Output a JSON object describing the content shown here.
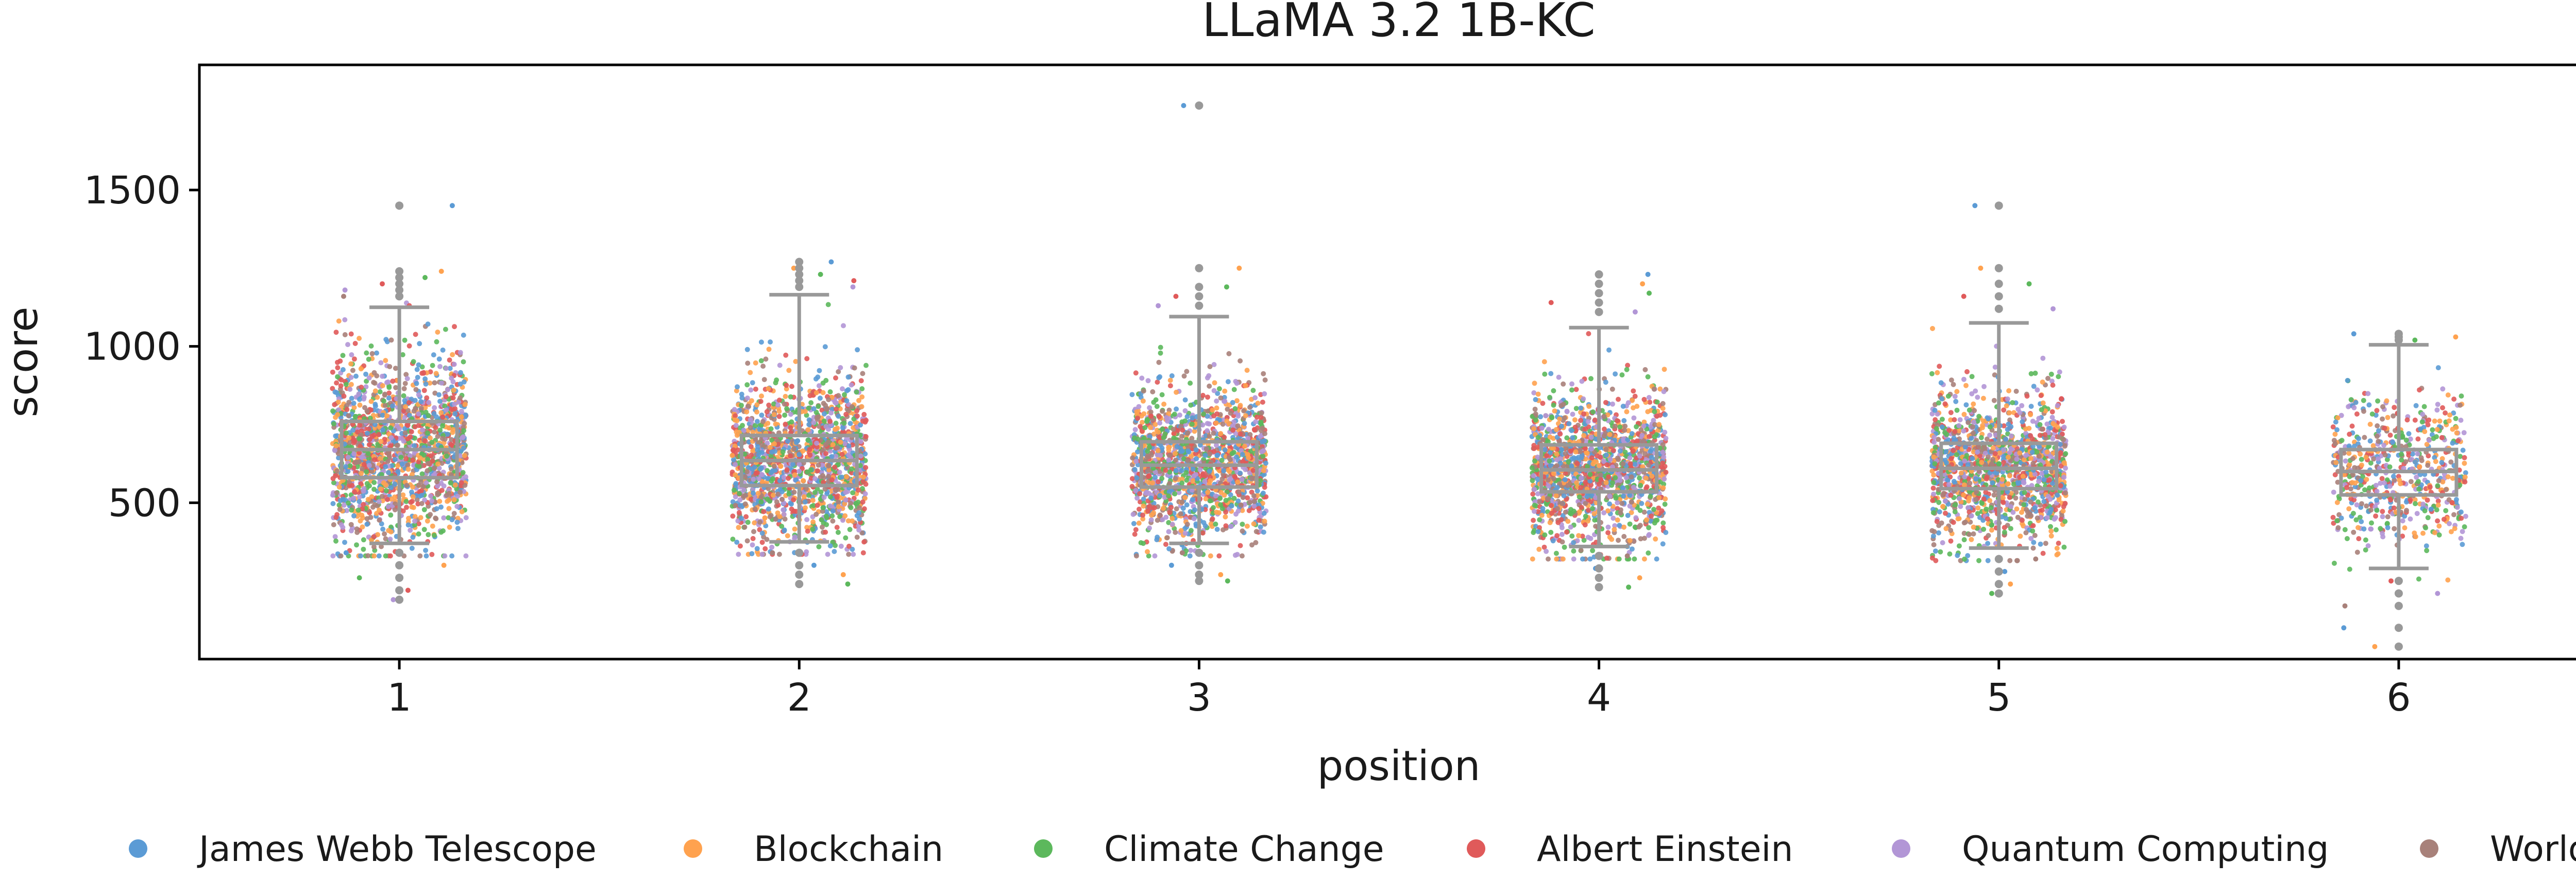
{
  "chart_data": {
    "type": "box_strip",
    "title": "LLaMA 3.2 1B-KC",
    "xlabel": "position",
    "ylabel": "score",
    "categories": [
      "1",
      "2",
      "3",
      "4",
      "5",
      "6"
    ],
    "ylim": [
      0,
      1900
    ],
    "yticks": [
      500,
      1000,
      1500
    ],
    "grid": false,
    "legend_position": "bottom",
    "box_color": "#999999",
    "series": [
      {
        "name": "James Webb Telescope",
        "color": "#5b9bd5"
      },
      {
        "name": "Blockchain",
        "color": "#ffa24f"
      },
      {
        "name": "Climate Change",
        "color": "#5cb85c"
      },
      {
        "name": "Albert Einstein",
        "color": "#e05a5a"
      },
      {
        "name": "Quantum Computing",
        "color": "#b296d6"
      },
      {
        "name": "World War II",
        "color": "#a8817a"
      }
    ],
    "boxes": [
      {
        "category": "1",
        "whisker_low": 370,
        "q1": 580,
        "median": 670,
        "q3": 760,
        "whisker_high": 1125,
        "outliers": [
          1450,
          1240,
          1220,
          1200,
          1180,
          1160,
          340,
          300,
          260,
          220,
          190
        ]
      },
      {
        "category": "2",
        "whisker_low": 375,
        "q1": 555,
        "median": 635,
        "q3": 715,
        "whisker_high": 1165,
        "outliers": [
          1270,
          1250,
          1230,
          1210,
          1190,
          340,
          300,
          270,
          240
        ]
      },
      {
        "category": "3",
        "whisker_low": 370,
        "q1": 550,
        "median": 620,
        "q3": 695,
        "whisker_high": 1095,
        "outliers": [
          1770,
          1250,
          1190,
          1160,
          1130,
          340,
          300,
          270,
          250
        ]
      },
      {
        "category": "4",
        "whisker_low": 360,
        "q1": 535,
        "median": 605,
        "q3": 685,
        "whisker_high": 1060,
        "outliers": [
          1230,
          1200,
          1170,
          1140,
          1110,
          330,
          290,
          260,
          230
        ]
      },
      {
        "category": "5",
        "whisker_low": 355,
        "q1": 545,
        "median": 610,
        "q3": 690,
        "whisker_high": 1075,
        "outliers": [
          1450,
          1250,
          1200,
          1160,
          1120,
          320,
          280,
          240,
          210
        ]
      },
      {
        "category": "6",
        "whisker_low": 290,
        "q1": 525,
        "median": 600,
        "q3": 670,
        "whisker_high": 1005,
        "outliers": [
          1040,
          1030,
          1020,
          250,
          210,
          170,
          100,
          40
        ]
      }
    ],
    "points_per_position": [
      1600,
      1500,
      1450,
      1450,
      1400,
      600
    ]
  }
}
